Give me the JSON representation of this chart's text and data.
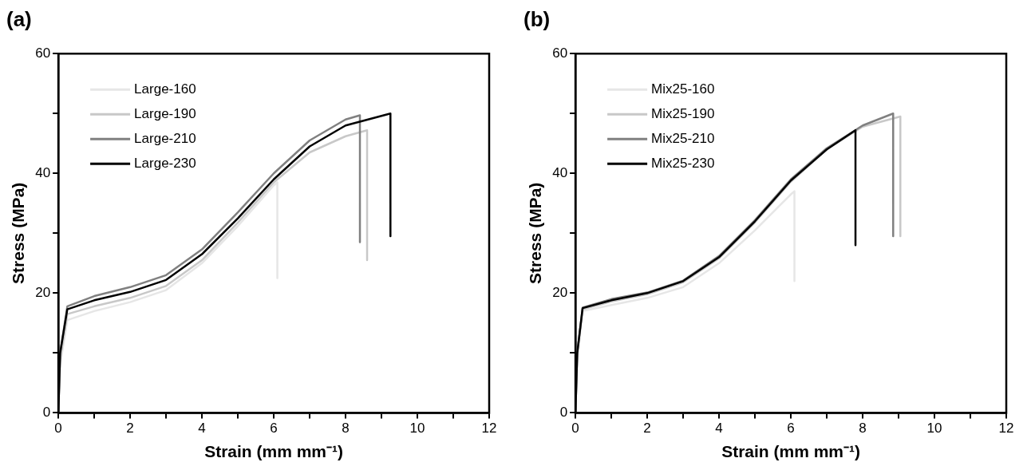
{
  "chart_data": [
    {
      "type": "line",
      "title": "(a)",
      "xlabel": "Strain (mm mm⁻¹)",
      "ylabel": "Stress (MPa)",
      "xlim": [
        0,
        12
      ],
      "ylim": [
        0,
        60
      ],
      "xticks": [
        0,
        {
          "value": 1,
          "label": null
        },
        2,
        {
          "value": 3,
          "label": null
        },
        4,
        {
          "value": 5,
          "label": null
        },
        6,
        {
          "value": 7,
          "label": null
        },
        8,
        {
          "value": 9,
          "label": null
        },
        10,
        {
          "value": 11,
          "label": null
        },
        12
      ],
      "yticks": [
        0,
        {
          "value": 10,
          "label": null
        },
        20,
        {
          "value": 30,
          "label": null
        },
        40,
        {
          "value": 50,
          "label": null
        },
        60
      ],
      "grid": false,
      "legend": "top left",
      "marker": "none",
      "line_style": "solid",
      "series": [
        {
          "name": "Large-160",
          "color": "#e6e6e6",
          "x": [
            0,
            0.05,
            0.25,
            1,
            2,
            3,
            4,
            5,
            6,
            6.1,
            6.1
          ],
          "values": [
            0,
            8,
            15.5,
            17,
            18.5,
            20.5,
            25,
            31.2,
            38,
            38.5,
            22.5
          ]
        },
        {
          "name": "Large-190",
          "color": "#c8c8c8",
          "x": [
            0,
            0.05,
            0.25,
            1,
            2,
            3,
            4,
            5,
            6,
            7,
            8,
            8.6,
            8.6
          ],
          "values": [
            0,
            9,
            16.5,
            17.8,
            19.2,
            21.2,
            25.5,
            31.8,
            38.5,
            43.5,
            46.2,
            47.2,
            25.5
          ]
        },
        {
          "name": "Large-210",
          "color": "#808080",
          "x": [
            0,
            0.05,
            0.25,
            1,
            2,
            3,
            4,
            5,
            6,
            7,
            8,
            8.4,
            8.4
          ],
          "values": [
            0,
            10,
            17.8,
            19.5,
            21,
            23,
            27.3,
            33.5,
            40,
            45.5,
            49,
            49.7,
            28.5
          ]
        },
        {
          "name": "Large-230",
          "color": "#000000",
          "x": [
            0,
            0.05,
            0.25,
            1,
            2,
            3,
            4,
            5,
            6,
            7,
            8,
            8.5,
            9.25,
            9.25
          ],
          "values": [
            0,
            10,
            17.3,
            18.8,
            20.2,
            22.2,
            26.5,
            32.5,
            39,
            44.5,
            48,
            48.8,
            50,
            29.5
          ]
        }
      ]
    },
    {
      "type": "line",
      "title": "(b)",
      "xlabel": "Strain (mm mm⁻¹)",
      "ylabel": "Stress (MPa)",
      "xlim": [
        0,
        12
      ],
      "ylim": [
        0,
        60
      ],
      "xticks": [
        0,
        {
          "value": 1,
          "label": null
        },
        2,
        {
          "value": 3,
          "label": null
        },
        4,
        {
          "value": 5,
          "label": null
        },
        6,
        {
          "value": 7,
          "label": null
        },
        8,
        {
          "value": 9,
          "label": null
        },
        10,
        {
          "value": 11,
          "label": null
        },
        12
      ],
      "yticks": [
        0,
        {
          "value": 10,
          "label": null
        },
        20,
        {
          "value": 30,
          "label": null
        },
        40,
        {
          "value": 50,
          "label": null
        },
        60
      ],
      "grid": false,
      "legend": "top left",
      "marker": "none",
      "line_style": "solid",
      "series": [
        {
          "name": "Mix25-160",
          "color": "#e6e6e6",
          "x": [
            0,
            0.05,
            0.2,
            1,
            2,
            3,
            4,
            5,
            6,
            6.1,
            6.1
          ],
          "values": [
            0,
            9,
            17,
            18,
            19.2,
            21,
            25,
            30.5,
            36.5,
            37,
            22
          ]
        },
        {
          "name": "Mix25-190",
          "color": "#c8c8c8",
          "x": [
            0,
            0.05,
            0.2,
            1,
            2,
            3,
            4,
            5,
            6,
            7,
            8,
            9.05,
            9.05
          ],
          "values": [
            0,
            10,
            17.3,
            18.6,
            19.8,
            21.8,
            25.8,
            31.8,
            38.6,
            44,
            47.8,
            49.5,
            29.5
          ]
        },
        {
          "name": "Mix25-210",
          "color": "#808080",
          "x": [
            0,
            0.05,
            0.2,
            1,
            2,
            3,
            4,
            5,
            6,
            7,
            8,
            8.85,
            8.85
          ],
          "values": [
            0,
            10,
            17.6,
            19,
            20.1,
            22.1,
            26.2,
            32.2,
            39,
            44.2,
            48,
            50,
            29.5
          ]
        },
        {
          "name": "Mix25-230",
          "color": "#000000",
          "x": [
            0,
            0.05,
            0.2,
            1,
            2,
            3,
            4,
            5,
            6,
            7,
            7.8,
            7.8
          ],
          "values": [
            0,
            10,
            17.5,
            18.8,
            20,
            22,
            26,
            32,
            38.8,
            44,
            47.2,
            28
          ]
        }
      ]
    }
  ]
}
